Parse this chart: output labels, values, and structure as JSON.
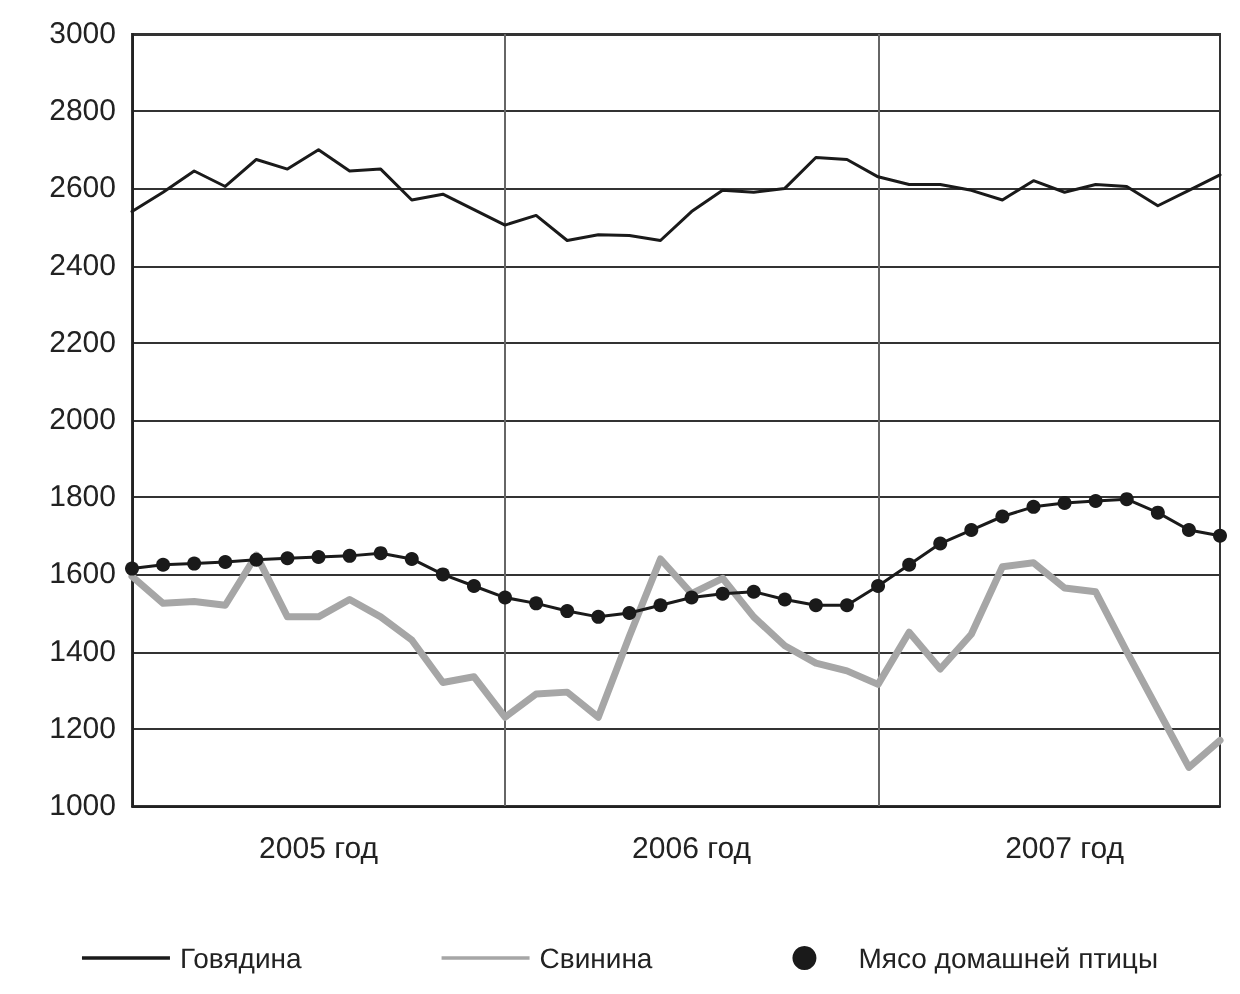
{
  "chart_data": {
    "type": "line",
    "categories": [
      null,
      null,
      null,
      null,
      null,
      null,
      "2005 год",
      null,
      null,
      null,
      null,
      null,
      null,
      null,
      null,
      null,
      null,
      null,
      "2006 год",
      null,
      null,
      null,
      null,
      null,
      null,
      null,
      null,
      null,
      null,
      null,
      "2007 год",
      null,
      null,
      null,
      null,
      null
    ],
    "ylim": [
      1000,
      3000
    ],
    "yticks": [
      1000,
      1200,
      1400,
      1600,
      1800,
      2000,
      2200,
      2400,
      2600,
      2800,
      3000
    ],
    "grid": true,
    "legend": "bottom",
    "series": [
      {
        "name": "Говядина",
        "color": "#1a1a1a",
        "marker": "none",
        "values": [
          2540,
          2590,
          2645,
          2605,
          2675,
          2650,
          2700,
          2645,
          2650,
          2570,
          2585,
          2545,
          2505,
          2530,
          2465,
          2480,
          2478,
          2465,
          2540,
          2595,
          2590,
          2600,
          2680,
          2675,
          2630,
          2610,
          2610,
          2595,
          2570,
          2620,
          2590,
          2610,
          2605,
          2555,
          2595,
          2635
        ]
      },
      {
        "name": "Свинина",
        "color": "#a6a6a6",
        "marker": "none",
        "values": [
          1595,
          1525,
          1530,
          1520,
          1650,
          1490,
          1490,
          1535,
          1490,
          1430,
          1320,
          1335,
          1230,
          1290,
          1295,
          1230,
          1440,
          1640,
          1550,
          1590,
          1490,
          1415,
          1370,
          1350,
          1315,
          1450,
          1355,
          1445,
          1620,
          1630,
          1565,
          1555,
          1400,
          1250,
          1100,
          1170
        ]
      },
      {
        "name": "Мясо домашней птицы",
        "color": "#1a1a1a",
        "marker": "circle",
        "values": [
          1615,
          1625,
          1628,
          1632,
          1638,
          1642,
          1645,
          1648,
          1655,
          1640,
          1600,
          1570,
          1540,
          1525,
          1505,
          1490,
          1500,
          1520,
          1540,
          1550,
          1555,
          1535,
          1520,
          1520,
          1570,
          1625,
          1680,
          1715,
          1750,
          1775,
          1785,
          1790,
          1795,
          1760,
          1715,
          1700
        ]
      }
    ]
  }
}
